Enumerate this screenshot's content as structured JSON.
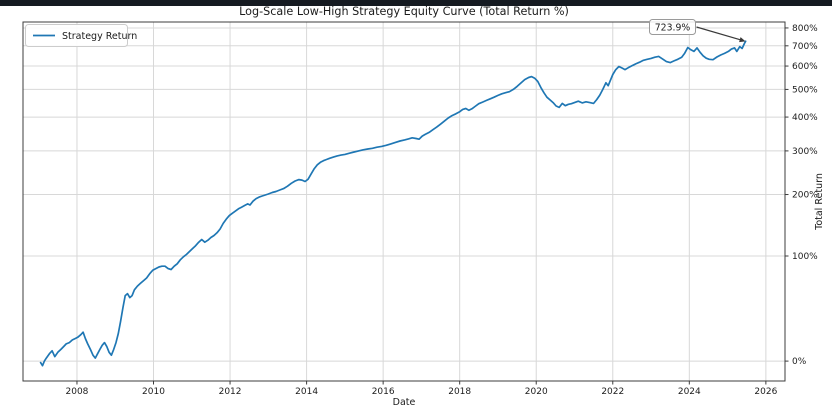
{
  "window": {
    "top_bar_color": "#151a21",
    "background_color": "#ffffff"
  },
  "chart_data": {
    "type": "line",
    "title": "Log-Scale Low-High Strategy Equity Curve (Total Return %)",
    "xlabel": "Date",
    "ylabel": "Total Return",
    "grid": true,
    "yscale": "log",
    "y_axis_side": "right",
    "legend_position": "upper left",
    "legend": [
      {
        "label": "Strategy Return",
        "color": "#1f77b4"
      }
    ],
    "annotation": {
      "text": "723.9%",
      "target_x": 2025.47,
      "target_y_pct": 723.9
    },
    "colors": {
      "line": "#1f77b4",
      "grid": "#d8d8d8",
      "spine": "#3c3c3c",
      "tick_text": "#262626",
      "arrow": "#3a3a3a",
      "annotation_border": "#9a9a9a"
    },
    "x_tick_labels": [
      "2008",
      "2010",
      "2012",
      "2014",
      "2016",
      "2018",
      "2020",
      "2022",
      "2024",
      "2026"
    ],
    "x_tick_values": [
      2008,
      2010,
      2012,
      2014,
      2016,
      2018,
      2020,
      2022,
      2024,
      2026
    ],
    "y_tick_labels": [
      "0%",
      "100%",
      "200%",
      "300%",
      "400%",
      "500%",
      "600%",
      "700%",
      "800%"
    ],
    "y_tick_values_pct": [
      0,
      100,
      200,
      300,
      400,
      500,
      600,
      700,
      800
    ],
    "xlim": [
      2006.59,
      2026.5
    ],
    "ylim_multiple": [
      0.877,
      9.36
    ],
    "series": [
      {
        "name": "Strategy Return",
        "points": [
          [
            2007.05,
            -1
          ],
          [
            2007.1,
            -3
          ],
          [
            2007.15,
            0
          ],
          [
            2007.2,
            2
          ],
          [
            2007.28,
            5
          ],
          [
            2007.35,
            7
          ],
          [
            2007.42,
            3
          ],
          [
            2007.5,
            6
          ],
          [
            2007.58,
            8
          ],
          [
            2007.65,
            10
          ],
          [
            2007.72,
            12
          ],
          [
            2007.8,
            13
          ],
          [
            2007.88,
            15
          ],
          [
            2007.95,
            16
          ],
          [
            2008.02,
            17
          ],
          [
            2008.1,
            19
          ],
          [
            2008.16,
            21
          ],
          [
            2008.22,
            16
          ],
          [
            2008.28,
            12
          ],
          [
            2008.35,
            8
          ],
          [
            2008.42,
            4
          ],
          [
            2008.48,
            2
          ],
          [
            2008.54,
            5
          ],
          [
            2008.6,
            8
          ],
          [
            2008.66,
            11
          ],
          [
            2008.72,
            13
          ],
          [
            2008.78,
            10
          ],
          [
            2008.84,
            6
          ],
          [
            2008.9,
            4
          ],
          [
            2008.96,
            8
          ],
          [
            2009.02,
            13
          ],
          [
            2009.08,
            20
          ],
          [
            2009.14,
            30
          ],
          [
            2009.2,
            42
          ],
          [
            2009.26,
            54
          ],
          [
            2009.32,
            56
          ],
          [
            2009.38,
            52
          ],
          [
            2009.44,
            54
          ],
          [
            2009.5,
            60
          ],
          [
            2009.58,
            64
          ],
          [
            2009.66,
            67
          ],
          [
            2009.74,
            70
          ],
          [
            2009.82,
            73
          ],
          [
            2009.9,
            78
          ],
          [
            2009.98,
            82
          ],
          [
            2010.06,
            84
          ],
          [
            2010.14,
            86
          ],
          [
            2010.22,
            87
          ],
          [
            2010.3,
            87
          ],
          [
            2010.38,
            84
          ],
          [
            2010.46,
            83
          ],
          [
            2010.54,
            87
          ],
          [
            2010.62,
            90
          ],
          [
            2010.7,
            95
          ],
          [
            2010.78,
            99
          ],
          [
            2010.86,
            102
          ],
          [
            2010.94,
            106
          ],
          [
            2011.02,
            110
          ],
          [
            2011.1,
            114
          ],
          [
            2011.18,
            119
          ],
          [
            2011.26,
            123
          ],
          [
            2011.34,
            119
          ],
          [
            2011.42,
            122
          ],
          [
            2011.5,
            126
          ],
          [
            2011.58,
            129
          ],
          [
            2011.66,
            133
          ],
          [
            2011.74,
            139
          ],
          [
            2011.82,
            148
          ],
          [
            2011.9,
            155
          ],
          [
            2011.98,
            161
          ],
          [
            2012.06,
            165
          ],
          [
            2012.14,
            169
          ],
          [
            2012.22,
            173
          ],
          [
            2012.3,
            176
          ],
          [
            2012.38,
            179
          ],
          [
            2012.46,
            182
          ],
          [
            2012.52,
            180
          ],
          [
            2012.6,
            187
          ],
          [
            2012.68,
            192
          ],
          [
            2012.76,
            195
          ],
          [
            2012.84,
            197
          ],
          [
            2012.92,
            199
          ],
          [
            2013.0,
            201
          ],
          [
            2013.1,
            204
          ],
          [
            2013.2,
            206
          ],
          [
            2013.3,
            209
          ],
          [
            2013.4,
            212
          ],
          [
            2013.5,
            217
          ],
          [
            2013.6,
            223
          ],
          [
            2013.7,
            228
          ],
          [
            2013.8,
            231
          ],
          [
            2013.88,
            230
          ],
          [
            2013.96,
            227
          ],
          [
            2014.04,
            232
          ],
          [
            2014.12,
            244
          ],
          [
            2014.2,
            256
          ],
          [
            2014.28,
            265
          ],
          [
            2014.36,
            271
          ],
          [
            2014.44,
            275
          ],
          [
            2014.52,
            278
          ],
          [
            2014.6,
            281
          ],
          [
            2014.7,
            284
          ],
          [
            2014.8,
            287
          ],
          [
            2014.9,
            289
          ],
          [
            2015.0,
            291
          ],
          [
            2015.12,
            294
          ],
          [
            2015.24,
            297
          ],
          [
            2015.36,
            300
          ],
          [
            2015.48,
            303
          ],
          [
            2015.6,
            305
          ],
          [
            2015.72,
            307
          ],
          [
            2015.84,
            310
          ],
          [
            2015.96,
            312
          ],
          [
            2016.08,
            315
          ],
          [
            2016.2,
            319
          ],
          [
            2016.32,
            323
          ],
          [
            2016.44,
            327
          ],
          [
            2016.56,
            330
          ],
          [
            2016.66,
            333
          ],
          [
            2016.76,
            336
          ],
          [
            2016.86,
            334
          ],
          [
            2016.94,
            332
          ],
          [
            2017.02,
            341
          ],
          [
            2017.1,
            346
          ],
          [
            2017.2,
            352
          ],
          [
            2017.3,
            360
          ],
          [
            2017.4,
            368
          ],
          [
            2017.5,
            377
          ],
          [
            2017.6,
            387
          ],
          [
            2017.7,
            397
          ],
          [
            2017.8,
            405
          ],
          [
            2017.9,
            411
          ],
          [
            2018.0,
            418
          ],
          [
            2018.08,
            426
          ],
          [
            2018.16,
            429
          ],
          [
            2018.24,
            423
          ],
          [
            2018.32,
            428
          ],
          [
            2018.4,
            436
          ],
          [
            2018.5,
            446
          ],
          [
            2018.6,
            452
          ],
          [
            2018.7,
            458
          ],
          [
            2018.8,
            464
          ],
          [
            2018.9,
            470
          ],
          [
            2019.0,
            477
          ],
          [
            2019.1,
            483
          ],
          [
            2019.2,
            487
          ],
          [
            2019.3,
            491
          ],
          [
            2019.4,
            500
          ],
          [
            2019.5,
            512
          ],
          [
            2019.6,
            526
          ],
          [
            2019.7,
            540
          ],
          [
            2019.8,
            549
          ],
          [
            2019.88,
            553
          ],
          [
            2019.96,
            546
          ],
          [
            2020.04,
            532
          ],
          [
            2020.12,
            508
          ],
          [
            2020.2,
            487
          ],
          [
            2020.28,
            470
          ],
          [
            2020.36,
            460
          ],
          [
            2020.44,
            450
          ],
          [
            2020.52,
            438
          ],
          [
            2020.6,
            433
          ],
          [
            2020.68,
            447
          ],
          [
            2020.76,
            439
          ],
          [
            2020.84,
            444
          ],
          [
            2020.92,
            446
          ],
          [
            2021.0,
            450
          ],
          [
            2021.1,
            455
          ],
          [
            2021.2,
            449
          ],
          [
            2021.3,
            453
          ],
          [
            2021.4,
            450
          ],
          [
            2021.5,
            447
          ],
          [
            2021.58,
            461
          ],
          [
            2021.66,
            478
          ],
          [
            2021.74,
            500
          ],
          [
            2021.82,
            527
          ],
          [
            2021.88,
            515
          ],
          [
            2021.94,
            538
          ],
          [
            2022.0,
            562
          ],
          [
            2022.08,
            584
          ],
          [
            2022.16,
            598
          ],
          [
            2022.24,
            591
          ],
          [
            2022.32,
            584
          ],
          [
            2022.4,
            592
          ],
          [
            2022.5,
            601
          ],
          [
            2022.6,
            610
          ],
          [
            2022.7,
            618
          ],
          [
            2022.8,
            627
          ],
          [
            2022.9,
            632
          ],
          [
            2023.0,
            636
          ],
          [
            2023.1,
            642
          ],
          [
            2023.2,
            646
          ],
          [
            2023.3,
            634
          ],
          [
            2023.4,
            621
          ],
          [
            2023.5,
            616
          ],
          [
            2023.6,
            624
          ],
          [
            2023.7,
            632
          ],
          [
            2023.8,
            642
          ],
          [
            2023.88,
            662
          ],
          [
            2023.96,
            691
          ],
          [
            2024.04,
            679
          ],
          [
            2024.12,
            671
          ],
          [
            2024.2,
            689
          ],
          [
            2024.28,
            667
          ],
          [
            2024.36,
            649
          ],
          [
            2024.44,
            637
          ],
          [
            2024.52,
            632
          ],
          [
            2024.62,
            630
          ],
          [
            2024.72,
            643
          ],
          [
            2024.82,
            653
          ],
          [
            2024.92,
            661
          ],
          [
            2025.02,
            671
          ],
          [
            2025.1,
            683
          ],
          [
            2025.18,
            689
          ],
          [
            2025.24,
            671
          ],
          [
            2025.32,
            696
          ],
          [
            2025.38,
            686
          ],
          [
            2025.44,
            712
          ],
          [
            2025.47,
            723.9
          ]
        ]
      }
    ]
  }
}
